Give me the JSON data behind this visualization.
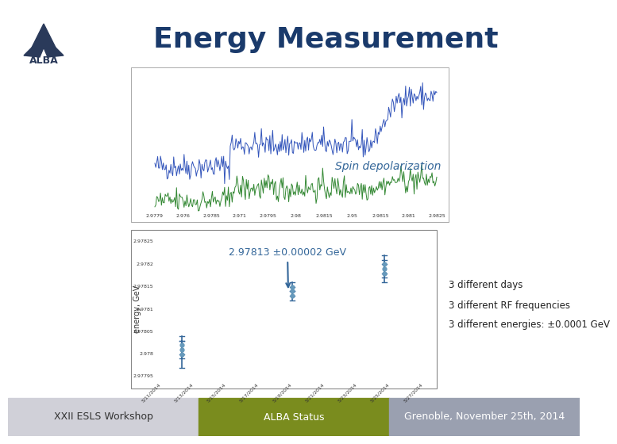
{
  "title": "Energy Measurement",
  "title_color": "#1a3a6b",
  "bg_color": "#ffffff",
  "slide_bg": "#f0f0f0",
  "footer_left_text": "XXII ESLS Workshop",
  "footer_left_bg": "#d0d0d8",
  "footer_mid_text": "ALBA Status",
  "footer_mid_bg": "#7a8c1e",
  "footer_right_text": "Grenoble, November 25th, 2014",
  "footer_right_bg": "#9aa0b0",
  "spin_depol_label": "Spin depolarization",
  "energy_label": "2.97813 ±0.00002 GeV",
  "days_label": "3 different days",
  "rf_label": "3 different RF frequencies",
  "energies_label": "3 different energies: ±0.0001 GeV",
  "annotation_text": "2.97813 ±0.00002 GeV",
  "arrow_color": "#336699",
  "text_color": "#336699",
  "plot1_bg": "#ffffff",
  "plot2_bg": "#ffffff",
  "logo_triangle_color": "#2a3a5a",
  "logo_arc_color": "#2a3a5a",
  "logo_text_color": "#2a3a5a"
}
